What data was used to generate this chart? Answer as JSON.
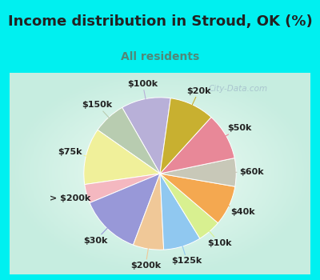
{
  "title": "Income distribution in Stroud, OK (%)",
  "subtitle": "All residents",
  "watermark": "City-Data.com",
  "labels": [
    "$100k",
    "$150k",
    "$75k",
    "> $200k",
    "$30k",
    "$200k",
    "$125k",
    "$10k",
    "$40k",
    "$60k",
    "$50k",
    "$20k"
  ],
  "sizes": [
    10.5,
    7.0,
    12.0,
    4.0,
    13.0,
    6.5,
    8.0,
    5.0,
    8.5,
    6.0,
    10.0,
    9.5
  ],
  "colors": [
    "#b8b0d8",
    "#b8ccb0",
    "#f0f09a",
    "#f4b8c0",
    "#9898d8",
    "#f0c898",
    "#90c8f0",
    "#d8f090",
    "#f4a850",
    "#c8c8b8",
    "#e88898",
    "#c8b030"
  ],
  "bg_cyan": "#00f0f0",
  "bg_chart_outer": "#c8ece0",
  "bg_chart_inner": "#e8f8f0",
  "title_color": "#222222",
  "subtitle_color": "#508878",
  "label_color": "#222222",
  "label_fontsize": 8,
  "title_fontsize": 13,
  "subtitle_fontsize": 10,
  "startangle": 82,
  "watermark_color": "#a0b8c8"
}
